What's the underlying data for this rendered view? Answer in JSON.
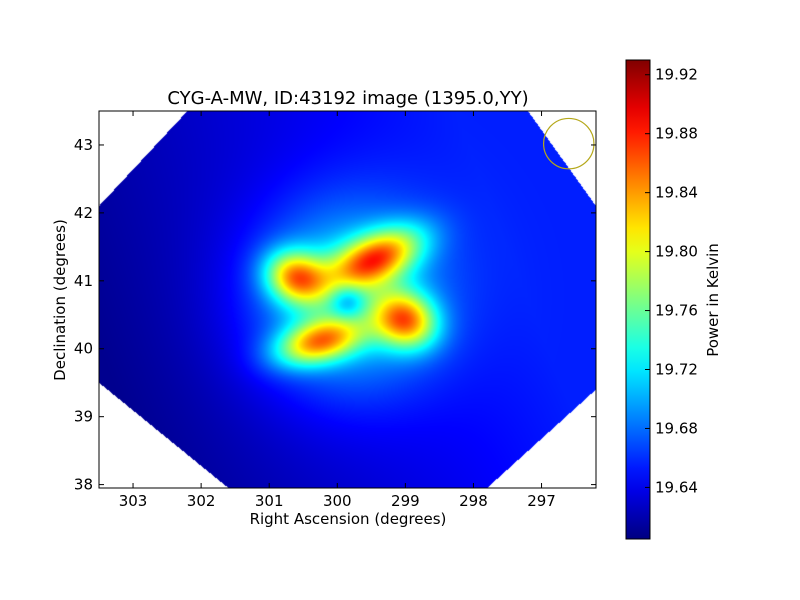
{
  "chart_data": {
    "type": "heatmap",
    "title": "CYG-A-MW, ID:43192 image (1395.0,YY)",
    "xlabel": "Right Ascension (degrees)",
    "ylabel": "Declination (degrees)",
    "xlim": [
      303.5,
      296.2
    ],
    "ylim": [
      37.95,
      43.5
    ],
    "x_inverted": true,
    "x_ticks": [
      303,
      302,
      301,
      300,
      299,
      298,
      297
    ],
    "y_ticks": [
      38,
      39,
      40,
      41,
      42,
      43
    ],
    "colormap": "jet",
    "colorbar": {
      "label": "Power in Kelvin",
      "range": [
        19.605,
        19.93
      ],
      "ticks": [
        "19.64",
        "19.68",
        "19.72",
        "19.76",
        "19.80",
        "19.84",
        "19.88",
        "19.92"
      ]
    },
    "coverage_region": {
      "shape": "diamond",
      "vertices_ra_dec": [
        [
          302.2,
          43.5
        ],
        [
          297.2,
          43.5
        ],
        [
          296.2,
          42.1
        ],
        [
          296.2,
          39.4
        ],
        [
          297.8,
          37.95
        ],
        [
          301.6,
          37.95
        ],
        [
          303.5,
          39.5
        ],
        [
          303.5,
          42.1
        ]
      ]
    },
    "background_gradient": {
      "low_corner_value": 19.61,
      "high_corner_value": 19.655,
      "low_at_ra_dec": [
        303.2,
        39.3
      ],
      "high_at_ra_dec": [
        297.5,
        41.5
      ]
    },
    "sources": [
      {
        "ra": 299.43,
        "dec": 41.33,
        "peak": 19.92,
        "sigma_ra_deg": 0.5,
        "sigma_dec_deg": 0.25,
        "rotation_deg": -25
      },
      {
        "ra": 300.6,
        "dec": 41.05,
        "peak": 19.905,
        "sigma_ra_deg": 0.32,
        "sigma_dec_deg": 0.26,
        "rotation_deg": 20
      },
      {
        "ra": 299.0,
        "dec": 40.42,
        "peak": 19.915,
        "sigma_ra_deg": 0.33,
        "sigma_dec_deg": 0.28,
        "rotation_deg": 25
      },
      {
        "ra": 300.27,
        "dec": 40.1,
        "peak": 19.905,
        "sigma_ra_deg": 0.45,
        "sigma_dec_deg": 0.22,
        "rotation_deg": -15
      }
    ],
    "diffuse_halo": {
      "ra": 299.9,
      "dec": 40.75,
      "value": 19.745,
      "radius_deg": 1.45
    },
    "central_dip": {
      "ra": 299.85,
      "dec": 40.7,
      "value": 19.69
    },
    "beam_marker": {
      "shape": "circle",
      "ra": 296.6,
      "dec": 43.02,
      "radius_deg": 0.37,
      "color": "#b5a81a"
    }
  }
}
